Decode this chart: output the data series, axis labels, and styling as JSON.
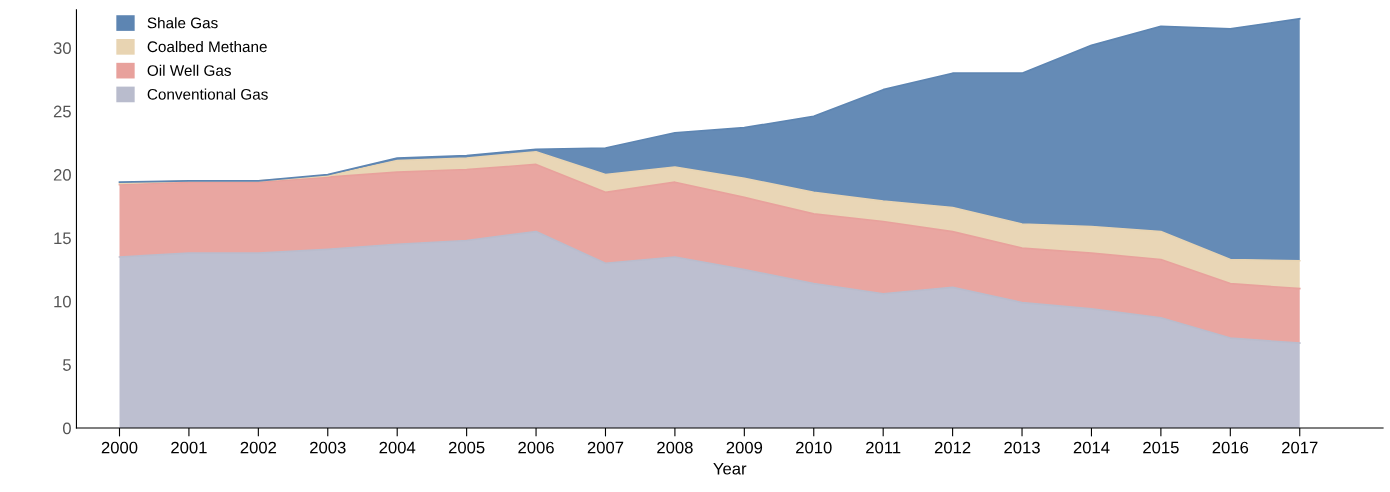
{
  "chart_data": {
    "type": "area",
    "stacked": true,
    "xlabel": "Year",
    "categories": [
      "2000",
      "2001",
      "2002",
      "2003",
      "2004",
      "2005",
      "2006",
      "2007",
      "2008",
      "2009",
      "2010",
      "2011",
      "2012",
      "2013",
      "2014",
      "2015",
      "2016",
      "2017"
    ],
    "series": [
      {
        "name": "Conventional Gas",
        "color": "#b9bccd",
        "values": [
          13.5,
          13.8,
          13.8,
          14.1,
          14.5,
          14.8,
          15.5,
          13.0,
          13.5,
          12.5,
          11.4,
          10.6,
          11.1,
          9.9,
          9.4,
          8.7,
          7.1,
          6.7
        ]
      },
      {
        "name": "Oil Well Gas",
        "color": "#e8a19c",
        "values": [
          5.7,
          5.6,
          5.6,
          5.7,
          5.7,
          5.6,
          5.3,
          5.6,
          5.9,
          5.7,
          5.5,
          5.7,
          4.4,
          4.3,
          4.4,
          4.6,
          4.3,
          4.3
        ]
      },
      {
        "name": "Coalbed Methane",
        "color": "#e8d4b2",
        "values": [
          0.1,
          0.1,
          0.1,
          0.1,
          0.9,
          0.9,
          1.0,
          1.4,
          1.2,
          1.5,
          1.7,
          1.6,
          1.9,
          1.9,
          2.1,
          2.2,
          1.9,
          2.2
        ]
      },
      {
        "name": "Shale Gas",
        "color": "#5d85b2",
        "values": [
          0.1,
          0.0,
          0.0,
          0.1,
          0.2,
          0.2,
          0.2,
          2.1,
          2.7,
          4.0,
          6.0,
          8.8,
          10.6,
          11.9,
          14.3,
          16.2,
          18.2,
          19.1
        ]
      }
    ],
    "ylim": [
      0,
      33
    ],
    "yticks": [
      0,
      5,
      10,
      15,
      20,
      25,
      30
    ],
    "grid": false,
    "legend": "top left"
  }
}
